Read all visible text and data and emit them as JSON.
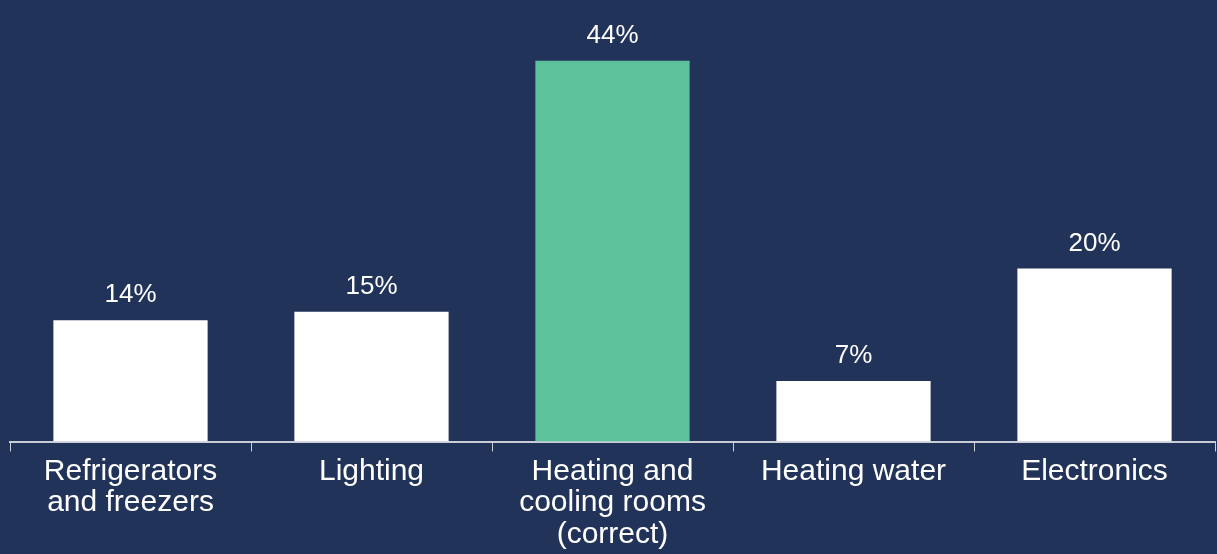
{
  "chart_data": {
    "type": "bar",
    "categories": [
      "Refrigerators and freezers",
      "Lighting",
      "Heating and cooling rooms (correct)",
      "Heating water",
      "Electronics"
    ],
    "values": [
      14,
      15,
      44,
      7,
      20
    ],
    "colors": [
      "#ffffff",
      "#ffffff",
      "#5bc29c",
      "#ffffff",
      "#ffffff"
    ],
    "value_labels": [
      "14%",
      "15%",
      "44%",
      "7%",
      "20%"
    ],
    "grid": false,
    "legend": false
  }
}
